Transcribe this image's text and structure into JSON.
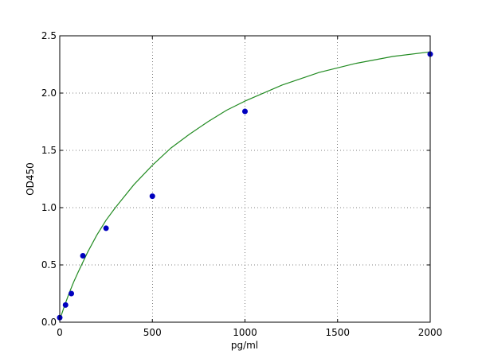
{
  "chart_data": {
    "type": "scatter",
    "title": "",
    "xlabel": "pg/ml",
    "ylabel": "OD450",
    "xlim": [
      0,
      2000
    ],
    "ylim": [
      0,
      2.5
    ],
    "xticks": [
      0,
      500,
      1000,
      1500,
      2000
    ],
    "yticks": [
      0.0,
      0.5,
      1.0,
      1.5,
      2.0,
      2.5
    ],
    "xtick_labels": [
      "0",
      "500",
      "1000",
      "1500",
      "2000"
    ],
    "ytick_labels": [
      "0.0",
      "0.5",
      "1.0",
      "1.5",
      "2.0",
      "2.5"
    ],
    "grid": true,
    "legend": "none",
    "series": [
      {
        "kind": "points",
        "color": "#0000bf",
        "x": [
          0,
          31.25,
          62.5,
          125,
          250,
          500,
          1000,
          2000
        ],
        "y": [
          0.04,
          0.15,
          0.25,
          0.58,
          0.82,
          1.1,
          1.84,
          2.34
        ]
      },
      {
        "kind": "fit-curve",
        "color": "#228b22",
        "x": [
          0,
          25,
          50,
          75,
          100,
          150,
          200,
          250,
          300,
          400,
          500,
          600,
          700,
          800,
          900,
          1000,
          1200,
          1400,
          1600,
          1800,
          2000
        ],
        "y": [
          0.02,
          0.14,
          0.25,
          0.35,
          0.44,
          0.61,
          0.76,
          0.89,
          1.0,
          1.2,
          1.37,
          1.52,
          1.64,
          1.75,
          1.85,
          1.93,
          2.07,
          2.18,
          2.26,
          2.32,
          2.36
        ]
      }
    ]
  }
}
